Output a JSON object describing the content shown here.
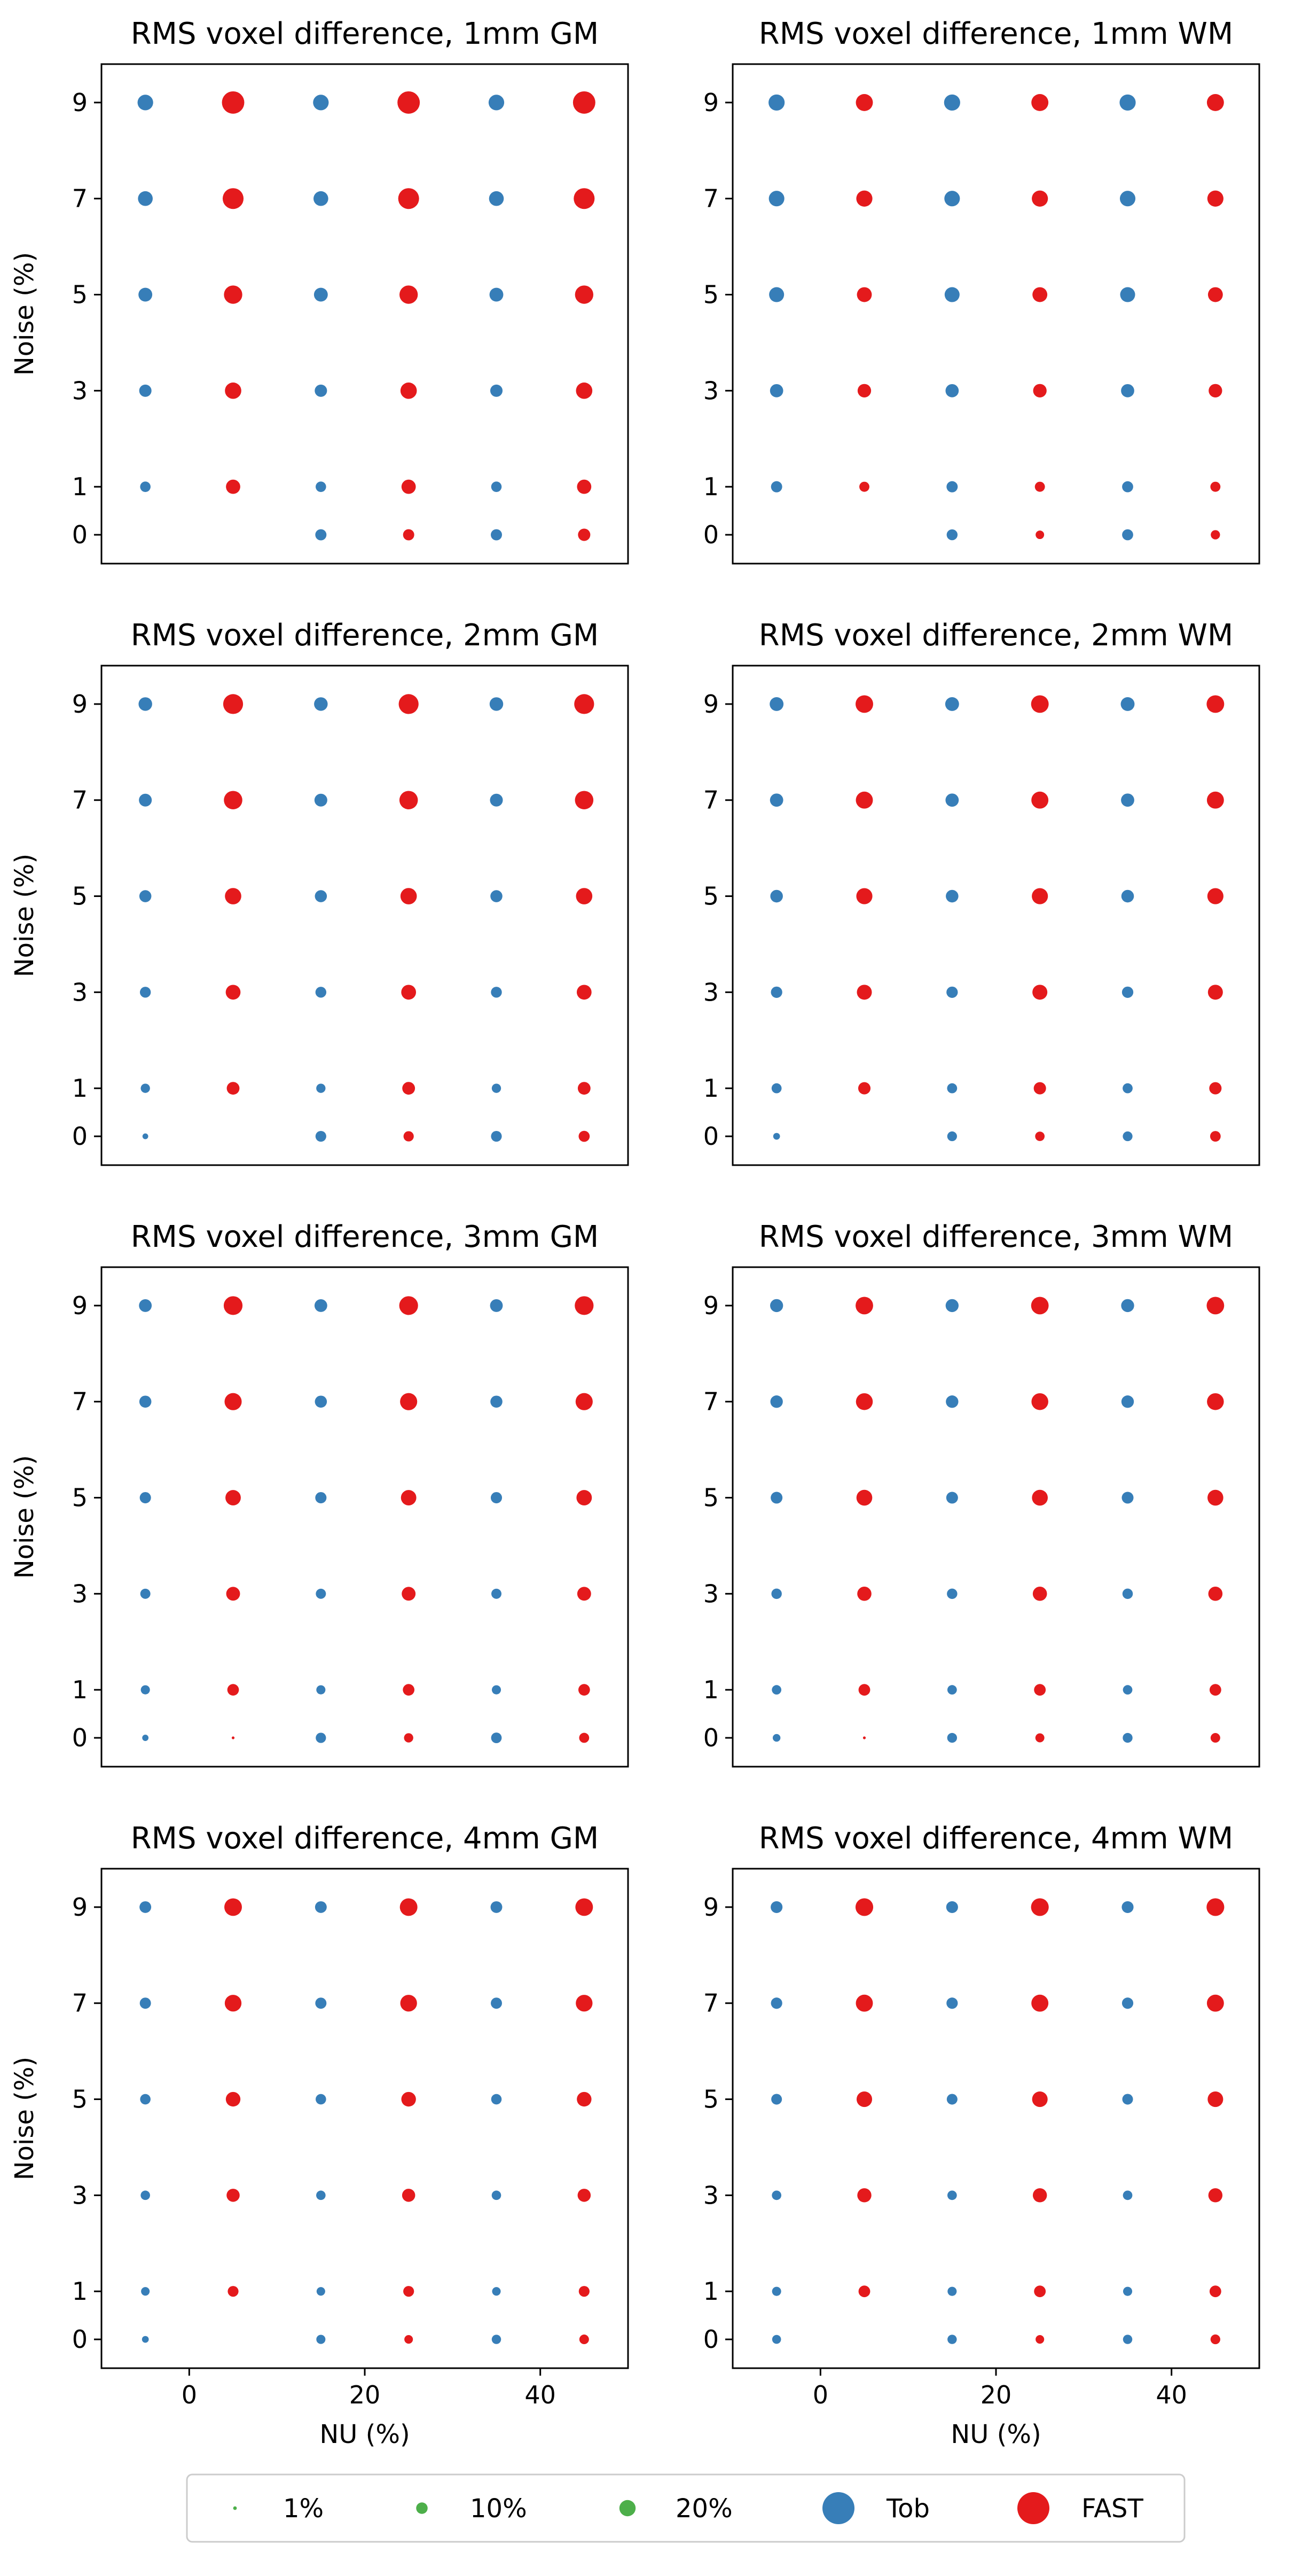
{
  "figure": {
    "shared_xlabel": "NU (%)",
    "shared_ylabel": "Noise (%)",
    "x_ticks": [
      0,
      20,
      40
    ],
    "y_ticks": [
      0,
      1,
      3,
      5,
      7,
      9
    ],
    "x_range": [
      -10,
      50
    ],
    "y_range": [
      -0.6,
      9.8
    ],
    "colors": {
      "Tob": "#377eb8",
      "FAST": "#e41a1c",
      "size_legend": "#4daf4a"
    },
    "legend": {
      "placement": "bottom-center",
      "entries": [
        {
          "label": "1%",
          "kind": "size",
          "size_value": 1
        },
        {
          "label": "10%",
          "kind": "size",
          "size_value": 10
        },
        {
          "label": "20%",
          "kind": "size",
          "size_value": 20
        },
        {
          "label": "Tob",
          "kind": "color",
          "series": "Tob"
        },
        {
          "label": "FAST",
          "kind": "color",
          "series": "FAST"
        }
      ]
    }
  },
  "chart_data": [
    {
      "type": "scatter",
      "title": "RMS voxel difference, 1mm GM",
      "xlabel": "",
      "ylabel": "Noise (%)",
      "x_offset_note": "",
      "nu": [
        0,
        20,
        40
      ],
      "noise": [
        0,
        1,
        3,
        5,
        7,
        9
      ],
      "series": [
        {
          "name": "Tob",
          "values": [
            [
              0,
              9.5,
              9.5
            ],
            [
              8.3,
              8.3,
              8.3
            ],
            [
              11.5,
              11.5,
              11.5
            ],
            [
              14.5,
              14.5,
              14.5
            ],
            [
              16.5,
              16.5,
              16.5
            ],
            [
              18.5,
              18.5,
              18.5
            ]
          ]
        },
        {
          "name": "FAST",
          "values": [
            [
              0,
              9.5,
              11.5
            ],
            [
              15.5,
              15.5,
              15.5
            ],
            [
              20.3,
              20.3,
              20.3
            ],
            [
              25.5,
              25.5,
              25.5
            ],
            [
              33,
              33,
              33
            ],
            [
              38,
              38,
              38
            ]
          ]
        }
      ]
    },
    {
      "type": "scatter",
      "title": "RMS voxel difference, 1mm WM",
      "xlabel": "",
      "ylabel": "",
      "x_offset_note": "",
      "nu": [
        0,
        20,
        40
      ],
      "noise": [
        0,
        1,
        3,
        5,
        7,
        9
      ],
      "series": [
        {
          "name": "Tob",
          "values": [
            [
              0,
              9,
              9.3
            ],
            [
              9.5,
              9.5,
              9.3
            ],
            [
              13.2,
              13.2,
              13.2
            ],
            [
              17,
              17,
              17
            ],
            [
              18.3,
              18.3,
              18.3
            ],
            [
              19.7,
              19.7,
              19.7
            ]
          ]
        },
        {
          "name": "FAST",
          "values": [
            [
              0,
              5.5,
              6.5
            ],
            [
              7.7,
              7.7,
              7.7
            ],
            [
              13.8,
              13.8,
              13.8
            ],
            [
              16.8,
              16.8,
              16.8
            ],
            [
              19.7,
              19.7,
              19.7
            ],
            [
              22,
              22,
              22
            ]
          ]
        }
      ]
    },
    {
      "type": "scatter",
      "title": "RMS voxel difference, 2mm GM",
      "xlabel": "",
      "ylabel": "Noise (%)",
      "x_offset_note": "",
      "nu": [
        0,
        20,
        40
      ],
      "noise": [
        0,
        1,
        3,
        5,
        7,
        9
      ],
      "series": [
        {
          "name": "Tob",
          "values": [
            [
              2.5,
              8.8,
              8.8
            ],
            [
              6.5,
              6.5,
              6.5
            ],
            [
              9,
              9,
              9
            ],
            [
              11,
              11,
              11
            ],
            [
              12.5,
              12.5,
              12.5
            ],
            [
              14,
              14,
              14
            ]
          ]
        },
        {
          "name": "FAST",
          "values": [
            [
              0,
              8,
              9.3
            ],
            [
              12.3,
              12.3,
              12.3
            ],
            [
              16.6,
              16.6,
              16.6
            ],
            [
              20.3,
              20.3,
              20.3
            ],
            [
              25.8,
              25.8,
              25.8
            ],
            [
              30,
              30,
              30
            ]
          ]
        }
      ]
    },
    {
      "type": "scatter",
      "title": "RMS voxel difference, 2mm WM",
      "xlabel": "",
      "ylabel": "",
      "x_offset_note": "",
      "nu": [
        0,
        20,
        40
      ],
      "noise": [
        0,
        1,
        3,
        5,
        7,
        9
      ],
      "series": [
        {
          "name": "Tob",
          "values": [
            [
              3.5,
              7.2,
              7.2
            ],
            [
              7.6,
              7.6,
              7.6
            ],
            [
              9.8,
              9.8,
              9.8
            ],
            [
              12,
              12,
              12
            ],
            [
              13.3,
              13.3,
              13.3
            ],
            [
              14.5,
              14.5,
              14.5
            ]
          ]
        },
        {
          "name": "FAST",
          "values": [
            [
              0,
              6.8,
              8.5
            ],
            [
              11.5,
              11.5,
              11.5
            ],
            [
              17,
              17,
              17
            ],
            [
              19.7,
              19.7,
              19.7
            ],
            [
              22,
              22,
              22
            ],
            [
              23.5,
              23.5,
              23.5
            ]
          ]
        }
      ]
    },
    {
      "type": "scatter",
      "title": "RMS voxel difference, 3mm GM",
      "xlabel": "",
      "ylabel": "Noise (%)",
      "x_offset_note": "",
      "nu": [
        0,
        20,
        40
      ],
      "noise": [
        0,
        1,
        3,
        5,
        7,
        9
      ],
      "series": [
        {
          "name": "Tob",
          "values": [
            [
              3,
              8,
              8.5
            ],
            [
              6.3,
              6.3,
              6.3
            ],
            [
              7.8,
              7.8,
              7.8
            ],
            [
              9.6,
              9.6,
              9.6
            ],
            [
              11,
              11,
              11
            ],
            [
              12.3,
              12.3,
              12.3
            ]
          ]
        },
        {
          "name": "FAST",
          "values": [
            [
              0.6,
              6.5,
              7.6
            ],
            [
              10.2,
              10.2,
              10.2
            ],
            [
              14.5,
              14.5,
              14.5
            ],
            [
              18,
              18,
              18
            ],
            [
              22.3,
              22.3,
              22.3
            ],
            [
              26.8,
              26.8,
              26.8
            ]
          ]
        }
      ]
    },
    {
      "type": "scatter",
      "title": "RMS voxel difference, 3mm WM",
      "xlabel": "",
      "ylabel": "",
      "x_offset_note": "",
      "nu": [
        0,
        20,
        40
      ],
      "noise": [
        0,
        1,
        3,
        5,
        7,
        9
      ],
      "series": [
        {
          "name": "Tob",
          "values": [
            [
              4.5,
              7.3,
              7.3
            ],
            [
              6.8,
              6.8,
              6.8
            ],
            [
              8.2,
              8.2,
              8.2
            ],
            [
              10.5,
              10.5,
              10.5
            ],
            [
              11.8,
              11.8,
              11.8
            ],
            [
              12.8,
              12.8,
              12.8
            ]
          ]
        },
        {
          "name": "FAST",
          "values": [
            [
              0.6,
              6.2,
              7
            ],
            [
              10.3,
              10.3,
              10.3
            ],
            [
              15.3,
              15.3,
              15.3
            ],
            [
              19,
              19,
              19
            ],
            [
              21.5,
              21.5,
              21.5
            ],
            [
              23.3,
              23.3,
              23.3
            ]
          ]
        }
      ]
    },
    {
      "type": "scatter",
      "title": "RMS voxel difference, 4mm GM",
      "xlabel": "NU (%)",
      "ylabel": "Noise (%)",
      "x_offset_note": "",
      "nu": [
        0,
        20,
        40
      ],
      "noise": [
        0,
        1,
        3,
        5,
        7,
        9
      ],
      "series": [
        {
          "name": "Tob",
          "values": [
            [
              3.5,
              6.3,
              6.6
            ],
            [
              5.6,
              5.6,
              5.6
            ],
            [
              6.7,
              6.7,
              6.7
            ],
            [
              8.3,
              8.3,
              8.3
            ],
            [
              9.5,
              9.5,
              9.5
            ],
            [
              10.4,
              10.4,
              10.4
            ]
          ]
        },
        {
          "name": "FAST",
          "values": [
            [
              0,
              5.6,
              7
            ],
            [
              8.8,
              8.8,
              8.8
            ],
            [
              13,
              13,
              13
            ],
            [
              16.2,
              16.2,
              16.2
            ],
            [
              21.2,
              21.2,
              21.2
            ],
            [
              23.5,
              23.5,
              23.5
            ]
          ]
        }
      ]
    },
    {
      "type": "scatter",
      "title": "RMS voxel difference, 4mm WM",
      "xlabel": "NU (%)",
      "ylabel": "",
      "x_offset_note": "",
      "nu": [
        0,
        20,
        40
      ],
      "noise": [
        0,
        1,
        3,
        5,
        7,
        9
      ],
      "series": [
        {
          "name": "Tob",
          "values": [
            [
              6,
              6.6,
              6.6
            ],
            [
              6.3,
              6.3,
              6.3
            ],
            [
              6.8,
              6.8,
              6.8
            ],
            [
              8.7,
              8.7,
              8.7
            ],
            [
              9.7,
              9.7,
              9.7
            ],
            [
              10.6,
              10.6,
              10.6
            ]
          ]
        },
        {
          "name": "FAST",
          "values": [
            [
              0,
              5.6,
              7.2
            ],
            [
              10.3,
              10.3,
              10.3
            ],
            [
              15.1,
              15.1,
              15.1
            ],
            [
              18.3,
              18.3,
              18.3
            ],
            [
              22,
              22,
              22
            ],
            [
              23.8,
              23.8,
              23.8
            ]
          ]
        }
      ]
    }
  ]
}
